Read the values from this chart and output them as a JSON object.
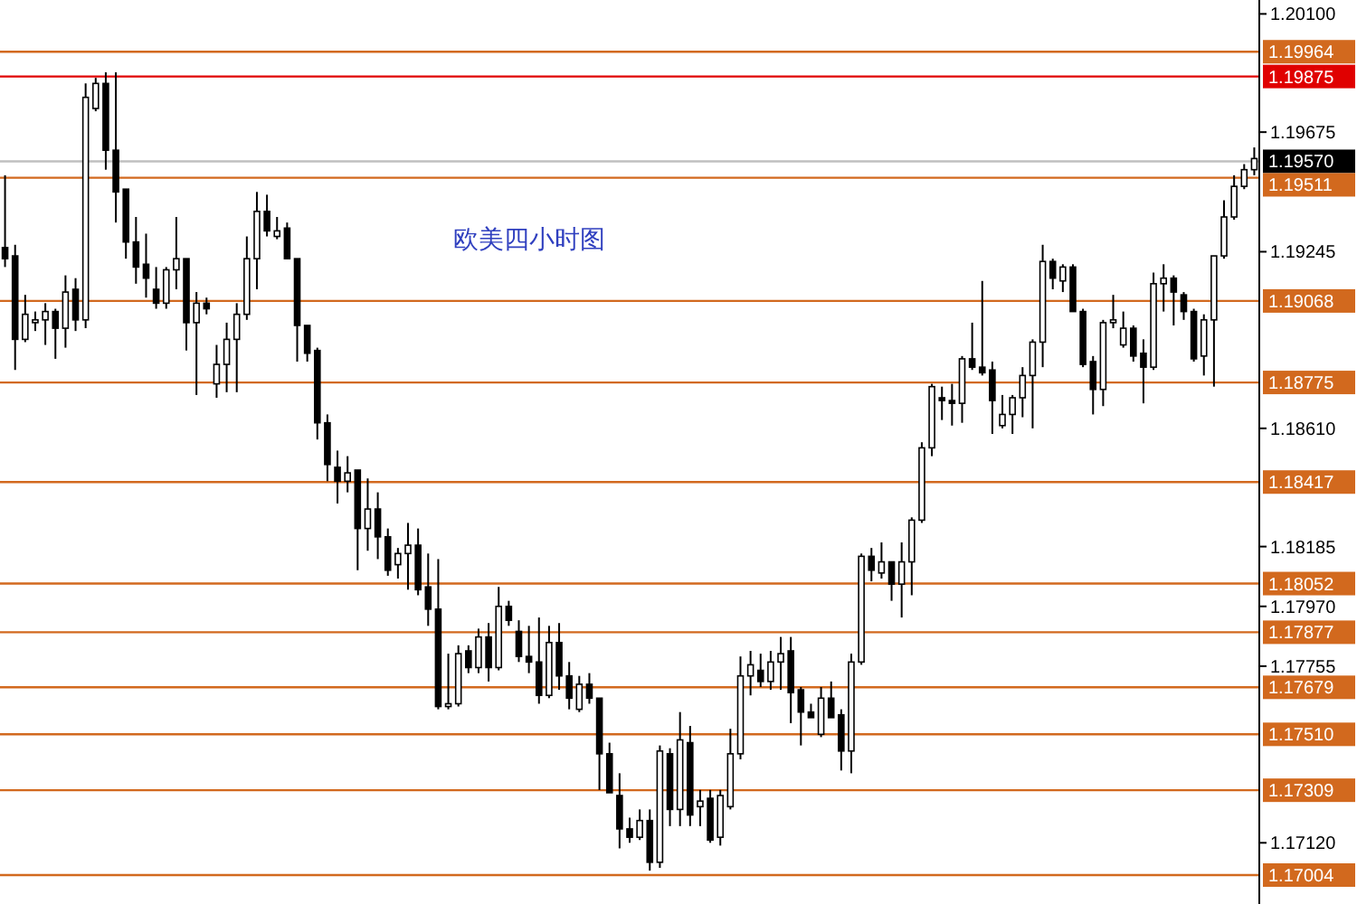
{
  "chart_data": {
    "type": "candlestick",
    "title": "欧美四小时图",
    "categories": [
      null,
      null,
      null,
      null,
      null,
      null,
      null,
      null,
      null,
      null,
      null,
      null,
      null,
      null,
      null,
      null,
      null,
      null,
      null,
      null,
      null,
      null,
      null,
      null,
      null,
      null,
      null,
      null,
      null,
      null,
      null,
      null,
      null,
      null,
      null,
      null,
      null,
      null,
      null,
      null,
      null,
      null,
      null,
      null,
      null,
      null,
      null,
      null,
      null,
      null,
      null,
      null,
      null,
      null,
      null,
      null,
      null,
      null,
      null,
      null,
      null,
      null,
      null,
      null,
      null,
      null,
      null,
      null,
      null,
      null,
      null,
      null,
      null,
      null,
      null,
      null,
      null,
      null,
      null,
      null,
      null,
      null,
      null,
      null,
      null,
      null,
      null,
      null,
      null,
      null,
      null,
      null,
      null,
      null,
      null,
      null,
      null,
      null,
      null,
      null,
      null,
      null,
      null,
      null,
      null,
      null,
      null,
      null,
      null,
      null,
      null,
      null,
      null,
      null,
      null,
      null,
      null,
      null,
      null,
      null,
      null,
      null,
      null,
      null,
      null
    ],
    "ohlc": [
      [
        1.1926,
        1.1952,
        1.1919,
        1.1922
      ],
      [
        1.1923,
        1.1927,
        1.1882,
        1.1893
      ],
      [
        1.1893,
        1.1909,
        1.1892,
        1.1902
      ],
      [
        1.1899,
        1.1903,
        1.1896,
        1.19
      ],
      [
        1.19,
        1.1906,
        1.1891,
        1.1903
      ],
      [
        1.1903,
        1.1904,
        1.1886,
        1.1897
      ],
      [
        1.1897,
        1.1916,
        1.189,
        1.191
      ],
      [
        1.1911,
        1.1915,
        1.1896,
        1.19
      ],
      [
        1.19,
        1.1985,
        1.1897,
        1.198
      ],
      [
        1.1976,
        1.1987,
        1.1975,
        1.1985
      ],
      [
        1.1985,
        1.1989,
        1.1954,
        1.1961
      ],
      [
        1.1961,
        1.1989,
        1.1935,
        1.1946
      ],
      [
        1.1947,
        1.1947,
        1.1922,
        1.1928
      ],
      [
        1.1928,
        1.1937,
        1.1913,
        1.1919
      ],
      [
        1.192,
        1.1931,
        1.1908,
        1.1915
      ],
      [
        1.1911,
        1.1919,
        1.1904,
        1.1906
      ],
      [
        1.1906,
        1.1919,
        1.1904,
        1.1918
      ],
      [
        1.1918,
        1.1937,
        1.1911,
        1.1922
      ],
      [
        1.1922,
        1.1922,
        1.1889,
        1.1899
      ],
      [
        1.1899,
        1.191,
        1.1873,
        1.1906
      ],
      [
        1.1906,
        1.1908,
        1.1902,
        1.1904
      ],
      [
        1.1877,
        1.1891,
        1.1872,
        1.1884
      ],
      [
        1.1884,
        1.1899,
        1.1874,
        1.1893
      ],
      [
        1.1893,
        1.1906,
        1.1874,
        1.1902
      ],
      [
        1.1902,
        1.193,
        1.19,
        1.1922
      ],
      [
        1.1922,
        1.1946,
        1.1911,
        1.1939
      ],
      [
        1.1939,
        1.1945,
        1.193,
        1.1932
      ],
      [
        1.193,
        1.1937,
        1.1929,
        1.1932
      ],
      [
        1.1933,
        1.1935,
        1.1922,
        1.1922
      ],
      [
        1.1922,
        1.1922,
        1.1885,
        1.1898
      ],
      [
        1.1898,
        1.1898,
        1.1885,
        1.1888
      ],
      [
        1.1889,
        1.189,
        1.1857,
        1.1863
      ],
      [
        1.1863,
        1.1866,
        1.1842,
        1.1848
      ],
      [
        1.1847,
        1.1853,
        1.1834,
        1.1842
      ],
      [
        1.1842,
        1.1851,
        1.1838,
        1.1845
      ],
      [
        1.1846,
        1.1846,
        1.181,
        1.1825
      ],
      [
        1.1825,
        1.1843,
        1.1817,
        1.1832
      ],
      [
        1.1832,
        1.1838,
        1.1814,
        1.1822
      ],
      [
        1.1822,
        1.1825,
        1.1808,
        1.181
      ],
      [
        1.1812,
        1.1818,
        1.1807,
        1.1816
      ],
      [
        1.1816,
        1.1827,
        1.1803,
        1.1819
      ],
      [
        1.1819,
        1.1825,
        1.1801,
        1.1803
      ],
      [
        1.1804,
        1.1816,
        1.179,
        1.1796
      ],
      [
        1.1796,
        1.1814,
        1.176,
        1.1761
      ],
      [
        1.1761,
        1.178,
        1.176,
        1.1762
      ],
      [
        1.1762,
        1.1783,
        1.1761,
        1.178
      ],
      [
        1.1781,
        1.1783,
        1.1773,
        1.1775
      ],
      [
        1.1775,
        1.1789,
        1.1773,
        1.1786
      ],
      [
        1.1786,
        1.1791,
        1.177,
        1.1775
      ],
      [
        1.1775,
        1.1804,
        1.1774,
        1.1797
      ],
      [
        1.1797,
        1.1799,
        1.179,
        1.1792
      ],
      [
        1.1788,
        1.1792,
        1.1777,
        1.1779
      ],
      [
        1.1779,
        1.179,
        1.1773,
        1.1777
      ],
      [
        1.1777,
        1.1793,
        1.1762,
        1.1765
      ],
      [
        1.1765,
        1.179,
        1.1764,
        1.1784
      ],
      [
        1.1784,
        1.1791,
        1.1767,
        1.1772
      ],
      [
        1.1772,
        1.1777,
        1.176,
        1.1764
      ],
      [
        1.176,
        1.1772,
        1.1759,
        1.1769
      ],
      [
        1.1769,
        1.1773,
        1.1762,
        1.1764
      ],
      [
        1.1764,
        1.1764,
        1.1731,
        1.1744
      ],
      [
        1.1744,
        1.1748,
        1.173,
        1.173
      ],
      [
        1.1729,
        1.1737,
        1.171,
        1.1717
      ],
      [
        1.1717,
        1.1721,
        1.1712,
        1.1714
      ],
      [
        1.1714,
        1.1724,
        1.1713,
        1.172
      ],
      [
        1.172,
        1.1724,
        1.1702,
        1.1705
      ],
      [
        1.1705,
        1.1747,
        1.1703,
        1.1745
      ],
      [
        1.1744,
        1.1746,
        1.1718,
        1.1724
      ],
      [
        1.1724,
        1.1759,
        1.1718,
        1.1749
      ],
      [
        1.1748,
        1.1754,
        1.1718,
        1.1722
      ],
      [
        1.1725,
        1.1731,
        1.1718,
        1.1727
      ],
      [
        1.1728,
        1.1731,
        1.1712,
        1.1713
      ],
      [
        1.1714,
        1.1731,
        1.1711,
        1.1729
      ],
      [
        1.1725,
        1.1753,
        1.1724,
        1.1744
      ],
      [
        1.1744,
        1.1779,
        1.1742,
        1.1772
      ],
      [
        1.1772,
        1.1781,
        1.1765,
        1.1776
      ],
      [
        1.1774,
        1.178,
        1.1768,
        1.177
      ],
      [
        1.177,
        1.1781,
        1.1767,
        1.1777
      ],
      [
        1.1777,
        1.1786,
        1.1767,
        1.178
      ],
      [
        1.1781,
        1.1786,
        1.1755,
        1.1766
      ],
      [
        1.1767,
        1.1768,
        1.1747,
        1.1759
      ],
      [
        1.1759,
        1.1762,
        1.1757,
        1.1757
      ],
      [
        1.1751,
        1.1768,
        1.175,
        1.1764
      ],
      [
        1.1764,
        1.177,
        1.1757,
        1.1757
      ],
      [
        1.1758,
        1.176,
        1.1738,
        1.1745
      ],
      [
        1.1745,
        1.178,
        1.1737,
        1.1777
      ],
      [
        1.1777,
        1.1816,
        1.1776,
        1.1815
      ],
      [
        1.1815,
        1.1818,
        1.1806,
        1.181
      ],
      [
        1.1809,
        1.182,
        1.1807,
        1.1813
      ],
      [
        1.1813,
        1.1813,
        1.1799,
        1.1805
      ],
      [
        1.1805,
        1.182,
        1.1793,
        1.1813
      ],
      [
        1.1813,
        1.1829,
        1.1801,
        1.1828
      ],
      [
        1.1828,
        1.1856,
        1.1827,
        1.1854
      ],
      [
        1.1854,
        1.1877,
        1.1851,
        1.1876
      ],
      [
        1.1872,
        1.1876,
        1.1864,
        1.1871
      ],
      [
        1.1871,
        1.1877,
        1.1862,
        1.187
      ],
      [
        1.187,
        1.1887,
        1.1863,
        1.1886
      ],
      [
        1.1886,
        1.1899,
        1.1882,
        1.1883
      ],
      [
        1.1883,
        1.1914,
        1.188,
        1.1881
      ],
      [
        1.1882,
        1.1885,
        1.1859,
        1.1871
      ],
      [
        1.1862,
        1.1873,
        1.1861,
        1.1866
      ],
      [
        1.1866,
        1.1873,
        1.1859,
        1.1872
      ],
      [
        1.1872,
        1.1883,
        1.1865,
        1.188
      ],
      [
        1.188,
        1.1893,
        1.1861,
        1.1892
      ],
      [
        1.1892,
        1.1927,
        1.1883,
        1.1921
      ],
      [
        1.1921,
        1.1922,
        1.1911,
        1.1915
      ],
      [
        1.1914,
        1.192,
        1.191,
        1.1919
      ],
      [
        1.1919,
        1.192,
        1.1903,
        1.1903
      ],
      [
        1.1903,
        1.1904,
        1.1883,
        1.1884
      ],
      [
        1.1885,
        1.1887,
        1.1866,
        1.1875
      ],
      [
        1.1875,
        1.19,
        1.1869,
        1.1899
      ],
      [
        1.1899,
        1.1909,
        1.1897,
        1.19
      ],
      [
        1.1891,
        1.1903,
        1.189,
        1.1897
      ],
      [
        1.1897,
        1.1898,
        1.1885,
        1.1887
      ],
      [
        1.1888,
        1.1893,
        1.187,
        1.1883
      ],
      [
        1.1883,
        1.1917,
        1.1882,
        1.1913
      ],
      [
        1.1913,
        1.192,
        1.1903,
        1.1915
      ],
      [
        1.1915,
        1.1916,
        1.1898,
        1.191
      ],
      [
        1.1909,
        1.191,
        1.19,
        1.1903
      ],
      [
        1.1903,
        1.1904,
        1.1885,
        1.1886
      ],
      [
        1.1887,
        1.1902,
        1.188,
        1.19
      ],
      [
        1.19,
        1.1923,
        1.1876,
        1.1923
      ],
      [
        1.1923,
        1.1943,
        1.1922,
        1.1937
      ],
      [
        1.1937,
        1.1952,
        1.1936,
        1.1948
      ],
      [
        1.1948,
        1.1956,
        1.1947,
        1.1954
      ],
      [
        1.1954,
        1.1962,
        1.1952,
        1.1958
      ]
    ],
    "ylim": [
      1.169,
      1.2015
    ],
    "yticks": [
      {
        "value": 1.201,
        "label": "1.20100"
      },
      {
        "value": 1.19675,
        "label": "1.19675"
      },
      {
        "value": 1.19245,
        "label": "1.19245"
      },
      {
        "value": 1.1861,
        "label": "1.18610"
      },
      {
        "value": 1.18185,
        "label": "1.18185"
      },
      {
        "value": 1.1797,
        "label": "1.17970"
      },
      {
        "value": 1.17755,
        "label": "1.17755"
      },
      {
        "value": 1.1712,
        "label": "1.17120"
      }
    ],
    "tick_labels": "y",
    "ref_lines": [
      {
        "axis": "y",
        "value": 1.19964,
        "label": "1.19964",
        "color": "#d2691e"
      },
      {
        "axis": "y",
        "value": 1.19875,
        "label": "1.19875",
        "color": "#e00000"
      },
      {
        "axis": "y",
        "value": 1.1957,
        "label": "1.19570",
        "color": "#c0c0c0"
      },
      {
        "axis": "y",
        "value": 1.19511,
        "label": "1.19511",
        "color": "#d2691e"
      },
      {
        "axis": "y",
        "value": 1.19068,
        "label": "1.19068",
        "color": "#d2691e"
      },
      {
        "axis": "y",
        "value": 1.18775,
        "label": "1.18775",
        "color": "#d2691e"
      },
      {
        "axis": "y",
        "value": 1.18417,
        "label": "1.18417",
        "color": "#d2691e"
      },
      {
        "axis": "y",
        "value": 1.18052,
        "label": "1.18052",
        "color": "#d2691e"
      },
      {
        "axis": "y",
        "value": 1.17877,
        "label": "1.17877",
        "color": "#d2691e"
      },
      {
        "axis": "y",
        "value": 1.17679,
        "label": "1.17679",
        "color": "#d2691e"
      },
      {
        "axis": "y",
        "value": 1.1751,
        "label": "1.17510",
        "color": "#d2691e"
      },
      {
        "axis": "y",
        "value": 1.17309,
        "label": "1.17309",
        "color": "#d2691e"
      },
      {
        "axis": "y",
        "value": 1.17004,
        "label": "1.17004",
        "color": "#d2691e"
      }
    ]
  }
}
